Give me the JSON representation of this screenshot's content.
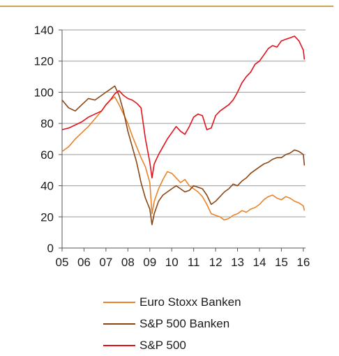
{
  "colors": {
    "top_rule": "#c8a651",
    "gridline": "#9a9a9a",
    "axis": "#555555"
  },
  "chart_data": {
    "type": "line",
    "title": "",
    "xlabel": "",
    "ylabel": "",
    "xlim": [
      2005.0,
      2016.1
    ],
    "ylim": [
      0,
      140
    ],
    "y_ticks": [
      "0",
      "20",
      "40",
      "60",
      "80",
      "100",
      "120",
      "140"
    ],
    "x_ticks": [
      {
        "label": "05",
        "x": 2005
      },
      {
        "label": "06",
        "x": 2006
      },
      {
        "label": "07",
        "x": 2007
      },
      {
        "label": "08",
        "x": 2008
      },
      {
        "label": "09",
        "x": 2009
      },
      {
        "label": "10",
        "x": 2010
      },
      {
        "label": "11",
        "x": 2011
      },
      {
        "label": "12",
        "x": 2012
      },
      {
        "label": "13",
        "x": 2013
      },
      {
        "label": "14",
        "x": 2014
      },
      {
        "label": "15",
        "x": 2015
      },
      {
        "label": "16",
        "x": 2016
      }
    ],
    "grid": "horizontal",
    "legend_position": "bottom",
    "series": [
      {
        "name": "Euro Stoxx Banken",
        "color": "#e8832a",
        "x": [
          2005.0,
          2005.3,
          2005.6,
          2005.9,
          2006.2,
          2006.5,
          2006.8,
          2007.0,
          2007.2,
          2007.4,
          2007.6,
          2007.8,
          2008.0,
          2008.2,
          2008.4,
          2008.6,
          2008.8,
          2009.0,
          2009.1,
          2009.2,
          2009.4,
          2009.6,
          2009.8,
          2010.0,
          2010.2,
          2010.4,
          2010.6,
          2010.8,
          2011.0,
          2011.2,
          2011.4,
          2011.6,
          2011.8,
          2012.0,
          2012.2,
          2012.4,
          2012.6,
          2012.8,
          2013.0,
          2013.2,
          2013.4,
          2013.6,
          2013.8,
          2014.0,
          2014.2,
          2014.4,
          2014.6,
          2014.8,
          2015.0,
          2015.2,
          2015.4,
          2015.6,
          2015.8,
          2016.0,
          2016.05
        ],
        "values": [
          62,
          65,
          70,
          74,
          78,
          83,
          88,
          92,
          95,
          97,
          92,
          86,
          80,
          72,
          65,
          58,
          52,
          42,
          22,
          30,
          38,
          44,
          49,
          48,
          45,
          42,
          44,
          40,
          38,
          36,
          33,
          28,
          22,
          21,
          20,
          18,
          19,
          21,
          22,
          24,
          23,
          25,
          26,
          28,
          31,
          33,
          34,
          32,
          31,
          33,
          32,
          30,
          29,
          27,
          24
        ]
      },
      {
        "name": "S&P 500 Banken",
        "color": "#8b4513",
        "x": [
          2005.0,
          2005.3,
          2005.6,
          2005.9,
          2006.2,
          2006.5,
          2006.8,
          2007.0,
          2007.2,
          2007.4,
          2007.6,
          2007.8,
          2008.0,
          2008.2,
          2008.4,
          2008.6,
          2008.8,
          2009.0,
          2009.1,
          2009.2,
          2009.4,
          2009.6,
          2009.8,
          2010.0,
          2010.2,
          2010.4,
          2010.6,
          2010.8,
          2011.0,
          2011.2,
          2011.4,
          2011.6,
          2011.8,
          2012.0,
          2012.2,
          2012.4,
          2012.6,
          2012.8,
          2013.0,
          2013.2,
          2013.4,
          2013.6,
          2013.8,
          2014.0,
          2014.2,
          2014.4,
          2014.6,
          2014.8,
          2015.0,
          2015.2,
          2015.4,
          2015.6,
          2015.8,
          2016.0,
          2016.05
        ],
        "values": [
          95,
          90,
          88,
          92,
          96,
          95,
          98,
          100,
          102,
          104,
          98,
          88,
          75,
          65,
          55,
          42,
          32,
          25,
          15,
          22,
          30,
          34,
          36,
          38,
          40,
          38,
          36,
          37,
          40,
          39,
          38,
          34,
          28,
          30,
          33,
          36,
          38,
          41,
          40,
          43,
          45,
          48,
          50,
          52,
          54,
          55,
          57,
          58,
          58,
          60,
          61,
          63,
          62,
          60,
          53
        ]
      },
      {
        "name": "S&P 500",
        "color": "#e3101a",
        "x": [
          2005.0,
          2005.3,
          2005.6,
          2005.9,
          2006.2,
          2006.5,
          2006.8,
          2007.0,
          2007.2,
          2007.4,
          2007.6,
          2007.8,
          2008.0,
          2008.2,
          2008.4,
          2008.6,
          2008.8,
          2009.0,
          2009.1,
          2009.2,
          2009.4,
          2009.6,
          2009.8,
          2010.0,
          2010.2,
          2010.4,
          2010.6,
          2010.8,
          2011.0,
          2011.2,
          2011.4,
          2011.6,
          2011.8,
          2012.0,
          2012.2,
          2012.4,
          2012.6,
          2012.8,
          2013.0,
          2013.2,
          2013.4,
          2013.6,
          2013.8,
          2014.0,
          2014.2,
          2014.4,
          2014.6,
          2014.8,
          2015.0,
          2015.2,
          2015.4,
          2015.6,
          2015.8,
          2016.0,
          2016.05
        ],
        "values": [
          76,
          77,
          79,
          81,
          84,
          86,
          88,
          92,
          95,
          99,
          101,
          98,
          96,
          95,
          93,
          90,
          70,
          55,
          45,
          54,
          60,
          65,
          70,
          74,
          78,
          75,
          73,
          78,
          84,
          86,
          85,
          76,
          77,
          85,
          88,
          90,
          92,
          95,
          100,
          106,
          110,
          113,
          118,
          120,
          124,
          128,
          130,
          129,
          133,
          134,
          135,
          136,
          133,
          127,
          121
        ]
      }
    ]
  },
  "legend": {
    "items": [
      {
        "label": "Euro Stoxx Banken",
        "color": "#e8832a"
      },
      {
        "label": "S&P 500 Banken",
        "color": "#8b4513"
      },
      {
        "label": "S&P 500",
        "color": "#e3101a"
      }
    ]
  }
}
